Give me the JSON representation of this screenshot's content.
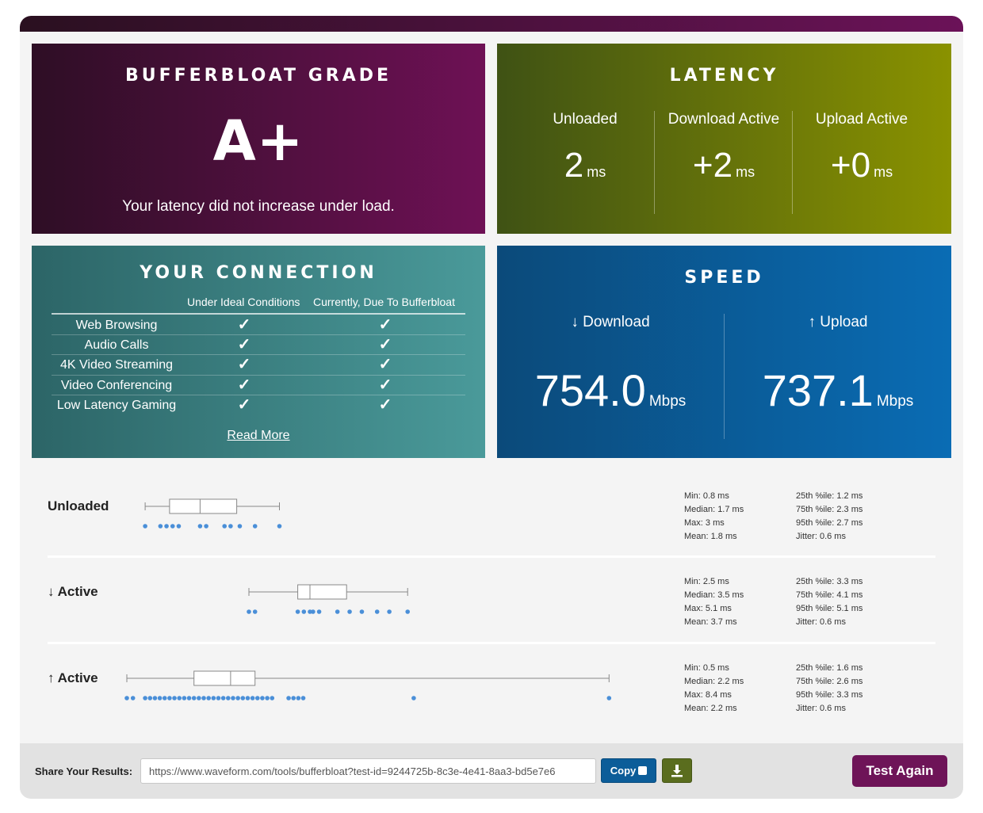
{
  "grade": {
    "title": "BUFFERBLOAT GRADE",
    "value": "A+",
    "description": "Your latency did not increase under load."
  },
  "latency": {
    "title": "LATENCY",
    "items": [
      {
        "label": "Unloaded",
        "value": "2",
        "unit": "ms"
      },
      {
        "label": "Download Active",
        "value": "+2",
        "unit": "ms"
      },
      {
        "label": "Upload Active",
        "value": "+0",
        "unit": "ms"
      }
    ]
  },
  "connection": {
    "title": "YOUR CONNECTION",
    "col_ideal": "Under Ideal Conditions",
    "col_current": "Currently, Due To Bufferbloat",
    "rows": [
      {
        "name": "Web Browsing",
        "ideal": "✓",
        "current": "✓"
      },
      {
        "name": "Audio Calls",
        "ideal": "✓",
        "current": "✓"
      },
      {
        "name": "4K Video Streaming",
        "ideal": "✓",
        "current": "✓"
      },
      {
        "name": "Video Conferencing",
        "ideal": "✓",
        "current": "✓"
      },
      {
        "name": "Low Latency Gaming",
        "ideal": "✓",
        "current": "✓"
      }
    ],
    "read_more": "Read More"
  },
  "speed": {
    "title": "SPEED",
    "download": {
      "label": "↓ Download",
      "value": "754.0",
      "unit": "Mbps"
    },
    "upload": {
      "label": "↑ Upload",
      "value": "737.1",
      "unit": "Mbps"
    }
  },
  "distributions": [
    {
      "label": "Unloaded",
      "box": {
        "min": 0.8,
        "q1": 1.2,
        "median": 1.7,
        "q3": 2.3,
        "max": 3
      },
      "points": [
        0.8,
        1.05,
        1.15,
        1.25,
        1.35,
        1.7,
        1.8,
        2.1,
        2.2,
        2.35,
        2.6,
        3.0
      ],
      "stats_left": [
        "Min: 0.8 ms",
        "Median: 1.7 ms",
        "Max: 3 ms",
        "Mean: 1.8 ms"
      ],
      "stats_right": [
        "25th %ile: 1.2 ms",
        "75th %ile: 2.3 ms",
        "95th %ile: 2.7 ms",
        "Jitter: 0.6 ms"
      ]
    },
    {
      "label": "↓ Active",
      "box": {
        "min": 2.5,
        "q1": 3.3,
        "median": 3.5,
        "q3": 4.1,
        "max": 5.1
      },
      "points": [
        2.5,
        2.6,
        3.3,
        3.4,
        3.5,
        3.55,
        3.65,
        3.95,
        4.15,
        4.35,
        4.6,
        4.8,
        5.1
      ],
      "stats_left": [
        "Min: 2.5 ms",
        "Median: 3.5 ms",
        "Max: 5.1 ms",
        "Mean: 3.7 ms"
      ],
      "stats_right": [
        "25th %ile: 3.3 ms",
        "75th %ile: 4.1 ms",
        "95th %ile: 5.1 ms",
        "Jitter: 0.6 ms"
      ]
    },
    {
      "label": "↑ Active",
      "box": {
        "min": 0.5,
        "q1": 1.6,
        "median": 2.2,
        "q3": 2.6,
        "max": 8.4
      },
      "points": [
        0.5,
        0.6,
        0.8,
        0.88,
        0.96,
        1.04,
        1.12,
        1.2,
        1.28,
        1.36,
        1.44,
        1.52,
        1.6,
        1.68,
        1.76,
        1.84,
        1.92,
        2.0,
        2.08,
        2.16,
        2.24,
        2.32,
        2.4,
        2.48,
        2.56,
        2.64,
        2.72,
        2.8,
        2.88,
        3.15,
        3.23,
        3.31,
        3.39,
        5.2,
        8.4
      ],
      "stats_left": [
        "Min: 0.5 ms",
        "Median: 2.2 ms",
        "Max: 8.4 ms",
        "Mean: 2.2 ms"
      ],
      "stats_right": [
        "25th %ile: 1.6 ms",
        "75th %ile: 2.6 ms",
        "95th %ile: 3.3 ms",
        "Jitter: 0.6 ms"
      ]
    }
  ],
  "share": {
    "label": "Share Your Results:",
    "url": "https://www.waveform.com/tools/bufferbloat?test-id=9244725b-8c3e-4e41-8aa3-bd5e7e6",
    "copy_label": "Copy",
    "download_icon": "download-icon",
    "test_again_label": "Test Again"
  },
  "colors": {
    "grade_start": "#2e0e25",
    "grade_end": "#6e1155",
    "latency_start": "#3f5214",
    "latency_end": "#8a9200",
    "connection_start": "#2c6567",
    "connection_end": "#4a9a9a",
    "speed_start": "#0b4a7a",
    "speed_end": "#0a6cb4",
    "dot": "#4a8fd8",
    "accent": "#6e1458"
  }
}
